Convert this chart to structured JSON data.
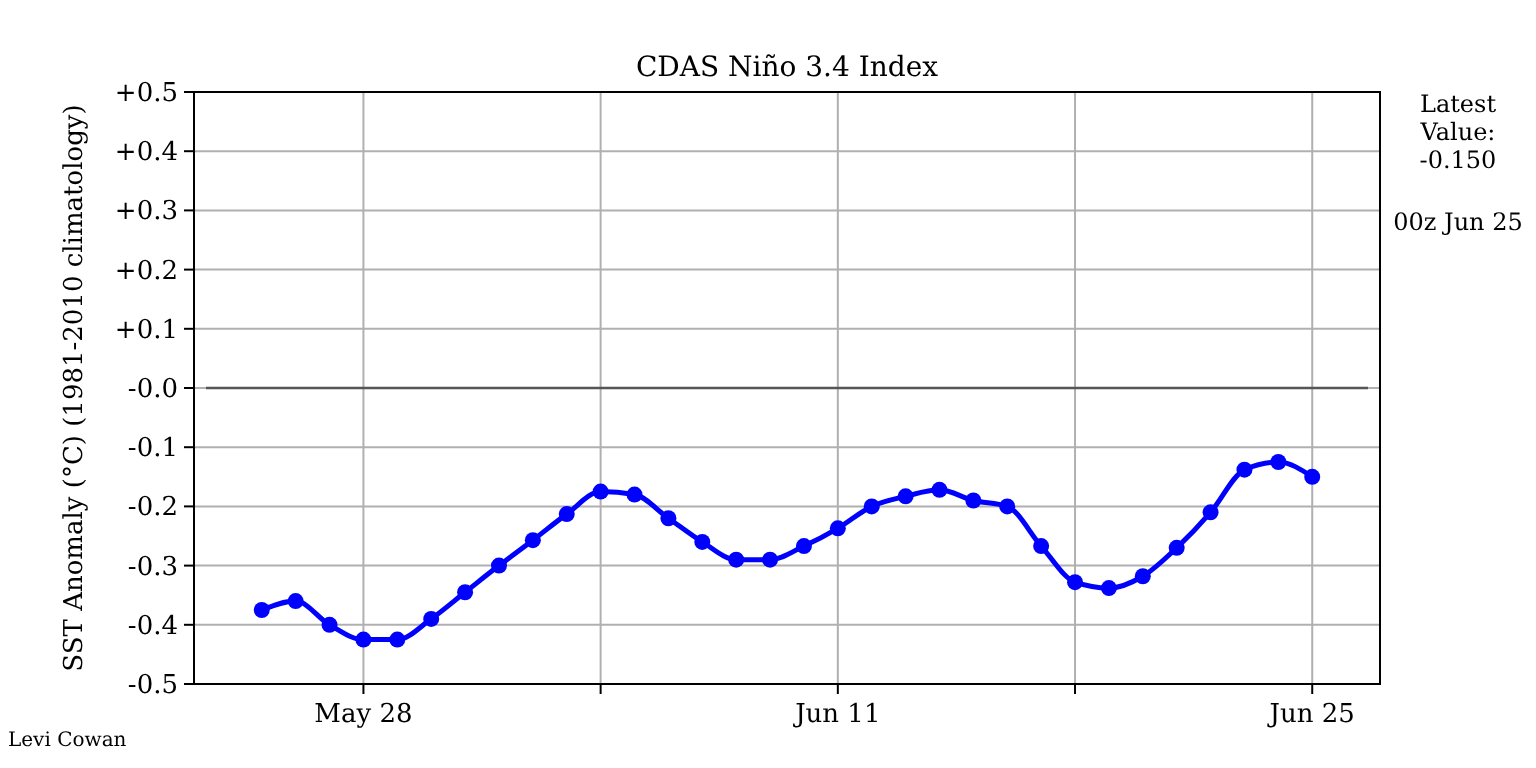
{
  "chart_data": {
    "type": "line",
    "title": "CDAS Niño 3.4 Index",
    "ylabel": "SST Anomaly (°C) (1981-2010 climatology)",
    "x": [
      "--05-25",
      "--05-26",
      "--05-27",
      "--05-28",
      "--05-29",
      "--05-30",
      "--05-31",
      "--06-01",
      "--06-02",
      "--06-03",
      "--06-04",
      "--06-05",
      "--06-06",
      "--06-07",
      "--06-08",
      "--06-09",
      "--06-10",
      "--06-11",
      "--06-12",
      "--06-13",
      "--06-14",
      "--06-15",
      "--06-16",
      "--06-17",
      "--06-18",
      "--06-19",
      "--06-20",
      "--06-21",
      "--06-22",
      "--06-23",
      "--06-24",
      "--06-25"
    ],
    "series": [
      {
        "color": "#0000ff",
        "values": [
          -0.375,
          -0.36,
          -0.4,
          -0.425,
          -0.425,
          -0.39,
          -0.345,
          -0.3,
          -0.257,
          -0.213,
          -0.175,
          -0.18,
          -0.22,
          -0.26,
          -0.29,
          -0.29,
          -0.267,
          -0.237,
          -0.2,
          -0.183,
          -0.172,
          -0.19,
          -0.2,
          -0.267,
          -0.328,
          -0.338,
          -0.318,
          -0.27,
          -0.21,
          -0.138,
          -0.125,
          -0.15
        ]
      }
    ],
    "xlim": [
      "--05-23",
      "--06-27"
    ],
    "xticks": [
      {
        "value": "--05-28",
        "label": "May 28"
      },
      {
        "value": "--06-04",
        "label": null
      },
      {
        "value": "--06-11",
        "label": "Jun 11"
      },
      {
        "value": "--06-18",
        "label": null
      },
      {
        "value": "--06-25",
        "label": "Jun 25"
      }
    ],
    "ylim": [
      -0.5,
      0.5
    ],
    "yticks": [
      {
        "value": -0.5,
        "label": "-0.5"
      },
      {
        "value": -0.4,
        "label": "-0.4"
      },
      {
        "value": -0.3,
        "label": "-0.3"
      },
      {
        "value": -0.2,
        "label": "-0.2"
      },
      {
        "value": -0.1,
        "label": "-0.1"
      },
      {
        "value": 0,
        "label": "-0.0"
      },
      {
        "value": 0.1,
        "label": "+0.1"
      },
      {
        "value": 0.2,
        "label": "+0.2"
      },
      {
        "value": 0.3,
        "label": "+0.3"
      },
      {
        "value": 0.4,
        "label": "+0.4"
      },
      {
        "value": 0.5,
        "label": "+0.5"
      }
    ],
    "ref_lines": [
      {
        "axis": "y",
        "value": 0,
        "color": "#555555"
      }
    ],
    "grid": true,
    "marker": "circle",
    "line_style": "solid",
    "annotations": [
      "Latest\nValue:\n-0.150",
      "00z Jun 25",
      "Levi Cowan"
    ]
  }
}
